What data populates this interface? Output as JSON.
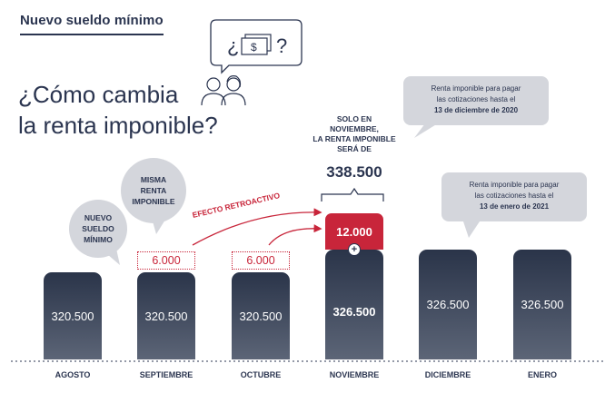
{
  "header": {
    "title": "Nuevo sueldo mínimo"
  },
  "question": {
    "line1": "¿Cómo cambia",
    "line2": "la renta imponible?"
  },
  "icons": {
    "thought_bubble": "question-money-icon",
    "people": "couple-icon",
    "money_glyph": "$"
  },
  "bubbles": {
    "agosto": [
      "NUEVO",
      "SUELDO",
      "MÍNIMO"
    ],
    "septiembre": [
      "MISMA",
      "RENTA",
      "IMPONIBLE"
    ],
    "diciembre": {
      "line1": "Renta imponible para pagar",
      "line2": "las cotizaciones hasta el",
      "line3": "13 de diciembre de 2020"
    },
    "enero": {
      "line1": "Renta imponible para pagar",
      "line2": "las cotizaciones hasta el",
      "line3": "13 de enero de 2021"
    }
  },
  "total_note": {
    "line1": "SOLO EN",
    "line2": "NOVIEMBRE,",
    "line3": "LA RENTA IMPONIBLE",
    "line4": "SERÁ DE",
    "value": "338.500"
  },
  "retro_label": "EFECTO RETROACTIVO",
  "plus_sign": "+",
  "colors": {
    "dark_bar": "#2a3449",
    "accent_red": "#c8253a",
    "bubble_gray": "#d4d6dc"
  },
  "chart_data": {
    "type": "bar",
    "title": "",
    "xlabel": "",
    "ylabel": "",
    "categories": [
      "AGOSTO",
      "SEPTIEMBRE",
      "OCTUBRE",
      "NOVIEMBRE",
      "DICIEMBRE",
      "ENERO"
    ],
    "series": [
      {
        "values": [
          320500,
          320500,
          320500,
          326500,
          326500,
          326500
        ]
      }
    ],
    "labels": [
      "320.500",
      "320.500",
      "320.500",
      "326.500",
      "326.500",
      "326.500"
    ],
    "increments": [
      {
        "category": "SEPTIEMBRE",
        "value": 6000,
        "label": "6.000"
      },
      {
        "category": "OCTUBRE",
        "value": 6000,
        "label": "6.000"
      },
      {
        "category": "NOVIEMBRE",
        "value": 12000,
        "label": "12.000"
      }
    ],
    "total_noviembre": 338500
  }
}
